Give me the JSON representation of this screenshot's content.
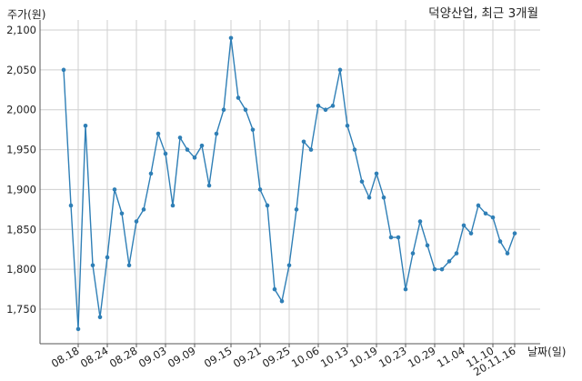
{
  "chart_data": {
    "type": "line",
    "title": "덕양산업, 최근 3개월",
    "ylabel": "주가(원)",
    "xlabel": "날짜(일)",
    "ylim": [
      1700,
      2100
    ],
    "yticks": [
      1750,
      1800,
      1850,
      1900,
      1950,
      2000,
      2050,
      2100
    ],
    "ytick_labels": [
      "1,750",
      "1,800",
      "1,850",
      "1,900",
      "1,950",
      "2,000",
      "2,050",
      "2,100"
    ],
    "xtick_labels": [
      "08.18",
      "08.24",
      "08.28",
      "09.03",
      "09.09",
      "09.15",
      "09.21",
      "09.25",
      "10.06",
      "10.13",
      "10.19",
      "10.23",
      "10.29",
      "11.04",
      "11.10",
      "20.11.16"
    ],
    "xtick_positions": [
      2,
      6,
      10,
      14,
      18,
      23,
      27,
      31,
      35,
      39,
      43,
      47,
      51,
      55,
      59,
      62
    ],
    "grid": true,
    "line_color": "#2f7fb6",
    "series": [
      {
        "values": [
          2050,
          1880,
          1725,
          1980,
          1805,
          1740,
          1815,
          1900,
          1870,
          1805,
          1860,
          1875,
          1920,
          1970,
          1945,
          1880,
          1965,
          1950,
          1940,
          1955,
          1905,
          1970,
          2000,
          2090,
          2015,
          2000,
          1975,
          1900,
          1880,
          1775,
          1760,
          1805,
          1875,
          1960,
          1950,
          2005,
          2000,
          2005,
          2050,
          1980,
          1950,
          1910,
          1890,
          1920,
          1890,
          1840,
          1840,
          1775,
          1820,
          1860,
          1830,
          1800,
          1800,
          1810,
          1820,
          1855,
          1845,
          1880,
          1870,
          1865,
          1835,
          1820,
          1845
        ]
      }
    ]
  }
}
